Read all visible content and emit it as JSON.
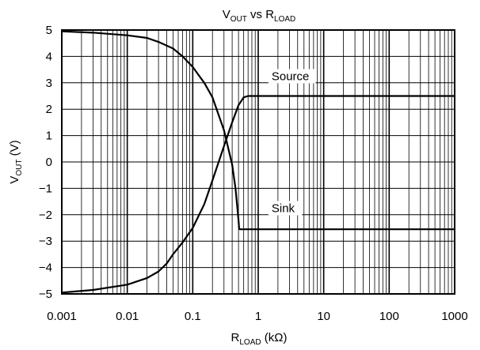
{
  "chart_data": {
    "type": "line",
    "title": {
      "base": "V",
      "sub": "OUT",
      "middle": " vs R",
      "sub2": "LOAD"
    },
    "xlabel": {
      "base": "R",
      "sub": "LOAD",
      "rest": " (kΩ)"
    },
    "ylabel": {
      "base": "V",
      "sub": "OUT",
      "rest": " (V)"
    },
    "xscale": "log",
    "xlim": [
      0.001,
      1000
    ],
    "ylim": [
      -5,
      5
    ],
    "grid": true,
    "xticks": [
      0.001,
      0.01,
      0.1,
      1,
      10,
      100,
      1000
    ],
    "xtick_labels": [
      "0.001",
      "0.01",
      "0.1",
      "1",
      "10",
      "100",
      "1000"
    ],
    "yticks": [
      5,
      4,
      3,
      2,
      1,
      0,
      -1,
      -2,
      -3,
      -4,
      -5
    ],
    "ytick_labels": [
      "5",
      "4",
      "3",
      "2",
      "1",
      "0",
      "−1",
      "−2",
      "−3",
      "−4",
      "−5"
    ],
    "series": [
      {
        "name": "Source",
        "color": "#000000",
        "x": [
          0.001,
          0.003,
          0.01,
          0.02,
          0.03,
          0.04,
          0.05,
          0.07,
          0.1,
          0.15,
          0.2,
          0.3,
          0.4,
          0.5,
          0.6,
          0.7,
          1,
          10,
          100,
          1000
        ],
        "y": [
          -4.95,
          -4.85,
          -4.65,
          -4.4,
          -4.15,
          -3.85,
          -3.5,
          -3.05,
          -2.5,
          -1.6,
          -0.7,
          0.6,
          1.5,
          2.15,
          2.45,
          2.5,
          2.5,
          2.5,
          2.5,
          2.5
        ]
      },
      {
        "name": "Sink",
        "color": "#000000",
        "x": [
          0.001,
          0.003,
          0.01,
          0.02,
          0.03,
          0.05,
          0.07,
          0.1,
          0.15,
          0.2,
          0.3,
          0.4,
          0.45,
          0.5,
          0.51,
          0.52,
          0.53,
          1,
          10,
          100,
          1000
        ],
        "y": [
          4.95,
          4.9,
          4.8,
          4.7,
          4.55,
          4.3,
          4.0,
          3.6,
          3.0,
          2.45,
          1.2,
          -0.1,
          -1.0,
          -2.2,
          -2.5,
          -2.55,
          -2.55,
          -2.55,
          -2.55,
          -2.55,
          -2.55
        ]
      }
    ],
    "annotations": [
      {
        "text": "Source",
        "series": "Source",
        "x": 1.6,
        "y": 3.1
      },
      {
        "text": "Sink",
        "series": "Sink",
        "x": 1.6,
        "y": -1.9
      }
    ]
  }
}
